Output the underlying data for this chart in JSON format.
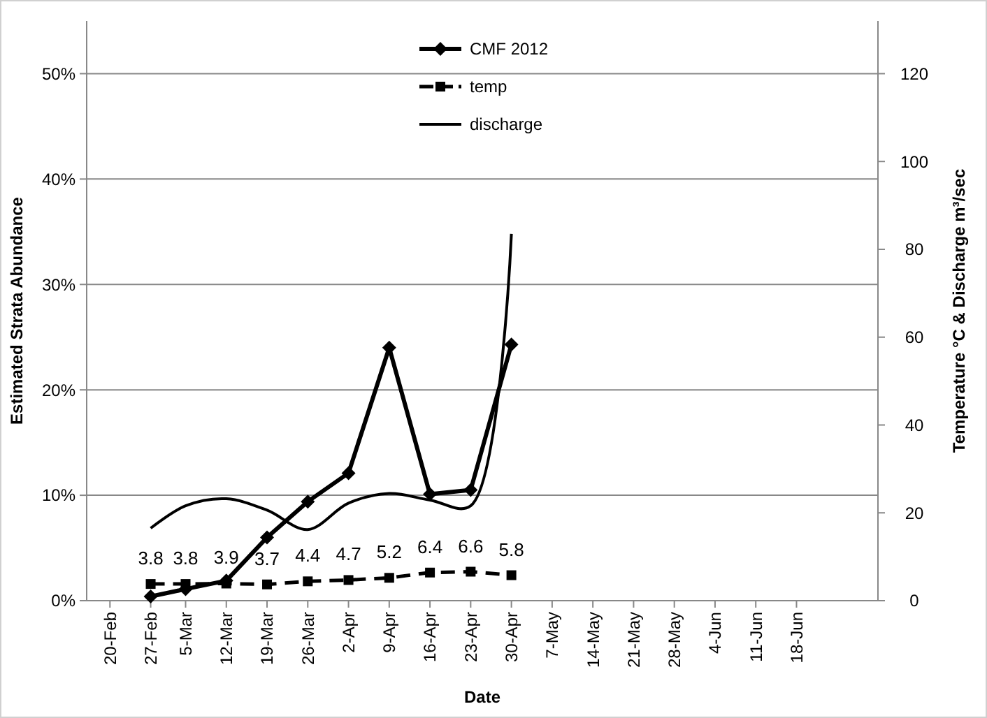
{
  "chart_data": {
    "type": "line",
    "xlabel": "Date",
    "ylabel": "Estimated Strata Abundance",
    "y2label": "Temperature °C & Discharge m³/sec",
    "x": [
      "--02-27",
      "--03-05",
      "--03-12",
      "--03-19",
      "--03-26",
      "--04-02",
      "--04-09",
      "--04-16",
      "--04-23",
      "--04-30"
    ],
    "series": [
      {
        "name": "CMF 2012",
        "color": "#000000",
        "marker": "diamond",
        "line_style": "solid",
        "values": [
          0.4,
          1.1,
          1.9,
          6,
          9.4,
          12.1,
          24,
          10.1,
          10.5,
          24.3
        ]
      },
      {
        "name": "temp",
        "color": "#000000",
        "marker": "square",
        "line_style": "dashed",
        "axis": "y2",
        "data_labels": true,
        "values": [
          3.8,
          3.8,
          3.9,
          3.7,
          4.4,
          4.7,
          5.2,
          6.4,
          6.6,
          5.8
        ]
      },
      {
        "name": "discharge",
        "color": "#000000",
        "marker": "none",
        "line_style": "solid",
        "axis": "y2",
        "values": [
          16.5,
          21.6,
          23.2,
          20.6,
          16.2,
          22.2,
          24.4,
          22.9,
          21.6,
          83.5
        ]
      }
    ],
    "xlim": [
      "--02-16",
      "--07-02"
    ],
    "xticks": [
      {
        "value": "--02-20",
        "label": "20-Feb"
      },
      {
        "value": "--02-27",
        "label": "27-Feb"
      },
      {
        "value": "--03-05",
        "label": "5-Mar"
      },
      {
        "value": "--03-12",
        "label": "12-Mar"
      },
      {
        "value": "--03-19",
        "label": "19-Mar"
      },
      {
        "value": "--03-26",
        "label": "26-Mar"
      },
      {
        "value": "--04-02",
        "label": "2-Apr"
      },
      {
        "value": "--04-09",
        "label": "9-Apr"
      },
      {
        "value": "--04-16",
        "label": "16-Apr"
      },
      {
        "value": "--04-23",
        "label": "23-Apr"
      },
      {
        "value": "--04-30",
        "label": "30-Apr"
      },
      {
        "value": "--05-07",
        "label": "7-May"
      },
      {
        "value": "--05-14",
        "label": "14-May"
      },
      {
        "value": "--05-21",
        "label": "21-May"
      },
      {
        "value": "--05-28",
        "label": "28-May"
      },
      {
        "value": "--06-04",
        "label": "4-Jun"
      },
      {
        "value": "--06-11",
        "label": "11-Jun"
      },
      {
        "value": "--06-18",
        "label": "18-Jun"
      }
    ],
    "ylim": [
      0,
      55
    ],
    "yticks": [
      {
        "value": 0,
        "label": "0%"
      },
      {
        "value": 10,
        "label": "10%"
      },
      {
        "value": 20,
        "label": "20%"
      },
      {
        "value": 30,
        "label": "30%"
      },
      {
        "value": 40,
        "label": "40%"
      },
      {
        "value": 50,
        "label": "50%"
      }
    ],
    "y2lim": [
      0,
      132
    ],
    "y2ticks": [
      0,
      20,
      40,
      60,
      80,
      100,
      120
    ],
    "grid": "y",
    "legend": "top"
  }
}
